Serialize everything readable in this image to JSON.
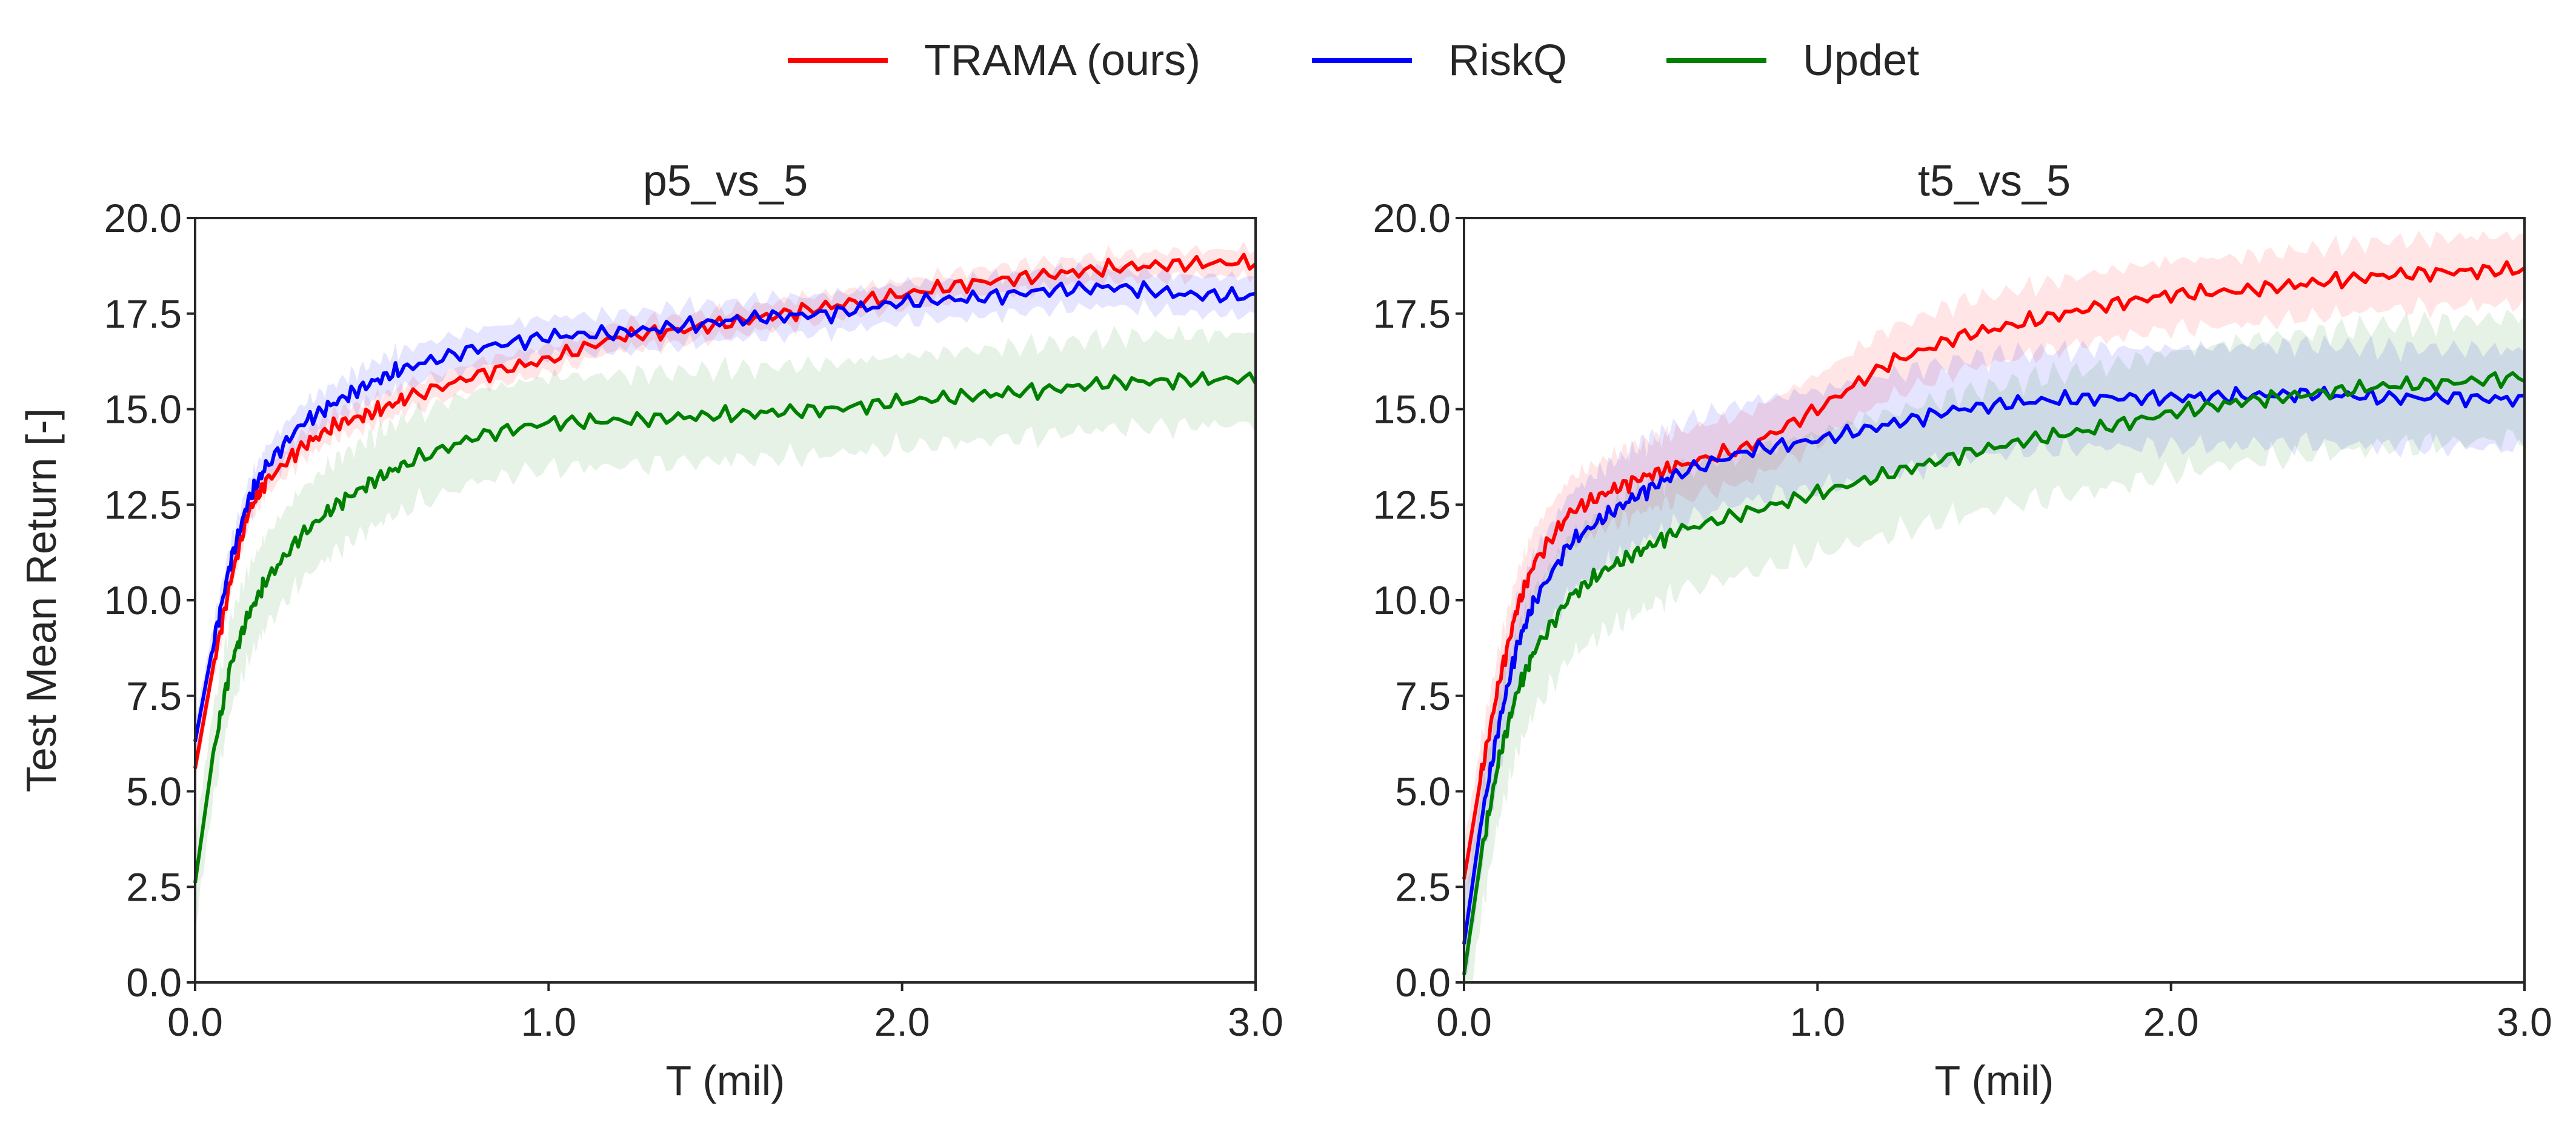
{
  "legend": {
    "entries": [
      {
        "label": "TRAMA (ours)",
        "color": "#ff0000"
      },
      {
        "label": "RiskQ",
        "color": "#0000ff"
      },
      {
        "label": "Updet",
        "color": "#008000"
      }
    ]
  },
  "chart_data": [
    {
      "type": "line",
      "title": "p5_vs_5",
      "xlabel": "T (mil)",
      "ylabel": "Test Mean Return [-]",
      "xlim": [
        0,
        3.0
      ],
      "ylim": [
        0,
        20
      ],
      "xticks": [
        "0.0",
        "1.0",
        "2.0",
        "3.0"
      ],
      "yticks": [
        "0.0",
        "2.5",
        "5.0",
        "7.5",
        "10.0",
        "12.5",
        "15.0",
        "17.5",
        "20.0"
      ],
      "x": [
        0,
        0.05,
        0.1,
        0.15,
        0.2,
        0.3,
        0.4,
        0.5,
        0.6,
        0.8,
        1.0,
        1.2,
        1.4,
        1.6,
        1.8,
        2.0,
        2.2,
        2.4,
        2.6,
        2.8,
        3.0
      ],
      "series": [
        {
          "name": "TRAMA (ours)",
          "color": "#ff0000",
          "values": [
            5.6,
            8.2,
            10.5,
            12.3,
            13.1,
            14.0,
            14.6,
            14.9,
            15.3,
            15.9,
            16.3,
            16.9,
            17.1,
            17.4,
            17.7,
            18.0,
            18.3,
            18.5,
            18.7,
            18.8,
            18.85
          ],
          "band": 0.35
        },
        {
          "name": "RiskQ",
          "color": "#0000ff",
          "values": [
            6.3,
            8.8,
            11.0,
            12.6,
            13.5,
            14.6,
            15.2,
            15.7,
            16.1,
            16.6,
            16.9,
            17.0,
            17.2,
            17.4,
            17.5,
            17.8,
            17.9,
            18.1,
            18.2,
            18.0,
            17.95
          ],
          "band": 0.5
        },
        {
          "name": "Updet",
          "color": "#008000",
          "values": [
            2.6,
            5.9,
            8.3,
            9.6,
            10.5,
            11.7,
            12.5,
            13.1,
            13.6,
            14.3,
            14.65,
            14.7,
            14.8,
            14.9,
            15.0,
            15.2,
            15.35,
            15.5,
            15.7,
            15.75,
            15.8
          ],
          "band": 1.2
        }
      ]
    },
    {
      "type": "line",
      "title": "t5_vs_5",
      "xlabel": "T (mil)",
      "ylabel": "",
      "xlim": [
        0,
        3.0
      ],
      "ylim": [
        0,
        20
      ],
      "xticks": [
        "0.0",
        "1.0",
        "2.0",
        "3.0"
      ],
      "yticks": [
        "0.0",
        "2.5",
        "5.0",
        "7.5",
        "10.0",
        "12.5",
        "15.0",
        "17.5",
        "20.0"
      ],
      "x": [
        0,
        0.05,
        0.1,
        0.15,
        0.2,
        0.3,
        0.4,
        0.5,
        0.6,
        0.8,
        1.0,
        1.2,
        1.4,
        1.6,
        1.8,
        2.0,
        2.2,
        2.4,
        2.6,
        2.8,
        3.0
      ],
      "series": [
        {
          "name": "TRAMA (ours)",
          "color": "#ff0000",
          "values": [
            2.7,
            5.5,
            7.9,
            9.8,
            11.0,
            12.3,
            12.8,
            13.2,
            13.5,
            14.0,
            15.0,
            16.2,
            16.9,
            17.3,
            17.7,
            18.0,
            18.1,
            18.3,
            18.5,
            18.6,
            18.65
          ],
          "band": 0.9
        },
        {
          "name": "RiskQ",
          "color": "#0000ff",
          "values": [
            1.0,
            4.3,
            6.8,
            8.8,
            10.0,
            11.5,
            12.2,
            12.8,
            13.3,
            13.9,
            14.2,
            14.6,
            15.0,
            15.2,
            15.3,
            15.3,
            15.35,
            15.4,
            15.3,
            15.3,
            15.25
          ],
          "band": 1.3
        },
        {
          "name": "Updet",
          "color": "#008000",
          "values": [
            0.2,
            3.4,
            5.9,
            7.6,
            8.7,
            10.1,
            10.8,
            11.3,
            11.8,
            12.3,
            12.8,
            13.3,
            13.8,
            14.2,
            14.5,
            14.9,
            15.2,
            15.4,
            15.6,
            15.7,
            15.85
          ],
          "band": 1.6
        }
      ]
    }
  ]
}
